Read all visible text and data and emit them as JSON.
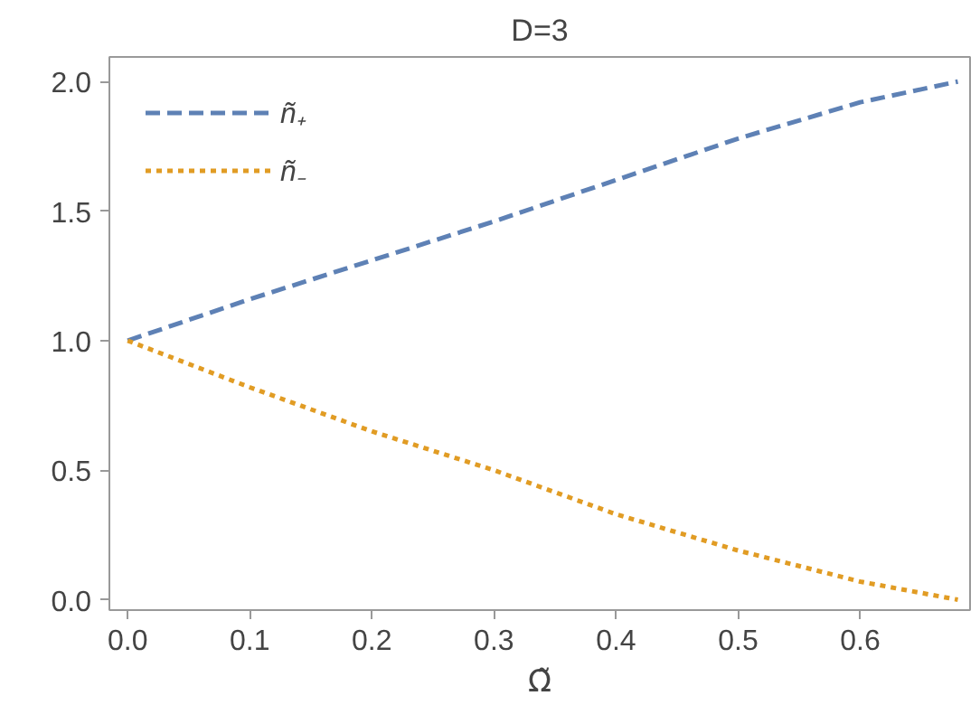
{
  "chart_data": {
    "type": "line",
    "title": "D=3",
    "xlabel": "Ω̃",
    "xlim": [
      -0.015,
      0.69
    ],
    "ylim": [
      -0.04,
      2.095
    ],
    "xticks": [
      {
        "value": 0,
        "label": "0.0"
      },
      0.1,
      0.2,
      0.3,
      0.4,
      0.5,
      0.6
    ],
    "yticks": [
      {
        "value": 0,
        "label": "0.0"
      },
      0.5,
      {
        "value": 1,
        "label": "1.0"
      },
      1.5,
      {
        "value": 2,
        "label": "2.0"
      }
    ],
    "grid": false,
    "legend": "top left",
    "marker": "none",
    "x": [
      0,
      0.1,
      0.2,
      0.3,
      0.4,
      0.5,
      0.6,
      0.68
    ],
    "series": [
      {
        "name": "ñ₊",
        "color": "#5e81b5",
        "line_style": "dashed",
        "values": [
          1.0,
          1.16,
          1.31,
          1.46,
          1.62,
          1.78,
          1.92,
          2.0
        ]
      },
      {
        "name": "ñ₋",
        "color": "#e19c24",
        "line_style": "dotted",
        "values": [
          1.0,
          0.82,
          0.65,
          0.5,
          0.33,
          0.19,
          0.07,
          0.0
        ]
      }
    ]
  }
}
